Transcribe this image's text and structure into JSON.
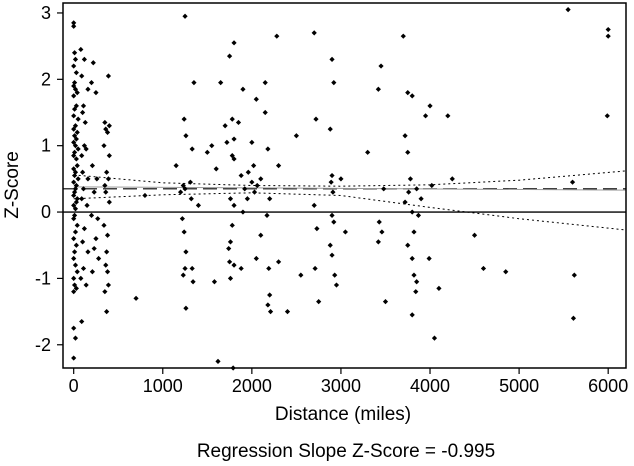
{
  "chart_data": {
    "type": "scatter",
    "xlabel": "Distance (miles)",
    "ylabel": "Z-Score",
    "caption": "Regression Slope Z-Score = -0.995",
    "xlim": [
      -120,
      6200
    ],
    "ylim": [
      -2.35,
      3.15
    ],
    "xticks": [
      0,
      1000,
      2000,
      3000,
      4000,
      5000,
      6000
    ],
    "yticks": [
      -2,
      -1,
      0,
      1,
      2,
      3
    ],
    "grid": false,
    "reference_line_y": 0,
    "mean_line_y": 0.35,
    "regression": {
      "x": [
        0,
        6200
      ],
      "y": [
        0.38,
        0.33
      ]
    },
    "confidence_upper": {
      "x": [
        0,
        1000,
        2000,
        3000,
        4000,
        5000,
        6200
      ],
      "y": [
        0.56,
        0.44,
        0.4,
        0.39,
        0.41,
        0.48,
        0.62
      ]
    },
    "confidence_lower": {
      "x": [
        0,
        1000,
        2000,
        3000,
        4000,
        5000,
        6200
      ],
      "y": [
        0.2,
        0.26,
        0.29,
        0.25,
        0.07,
        -0.1,
        -0.27
      ]
    },
    "series": [
      {
        "points": [
          [
            0,
            2.85
          ],
          [
            0,
            2.8
          ],
          [
            10,
            2.4
          ],
          [
            20,
            2.3
          ],
          [
            0,
            2.2
          ],
          [
            30,
            2.1
          ],
          [
            10,
            1.95
          ],
          [
            0,
            1.9
          ],
          [
            20,
            1.85
          ],
          [
            40,
            1.8
          ],
          [
            0,
            1.75
          ],
          [
            30,
            1.6
          ],
          [
            10,
            1.55
          ],
          [
            0,
            1.45
          ],
          [
            50,
            1.4
          ],
          [
            20,
            1.3
          ],
          [
            0,
            1.25
          ],
          [
            40,
            1.2
          ],
          [
            10,
            1.15
          ],
          [
            30,
            1.1
          ],
          [
            0,
            1.05
          ],
          [
            20,
            1.0
          ],
          [
            50,
            0.95
          ],
          [
            10,
            0.9
          ],
          [
            0,
            0.85
          ],
          [
            30,
            0.8
          ],
          [
            40,
            0.7
          ],
          [
            0,
            0.65
          ],
          [
            20,
            0.6
          ],
          [
            10,
            0.55
          ],
          [
            50,
            0.5
          ],
          [
            0,
            0.45
          ],
          [
            30,
            0.4
          ],
          [
            20,
            0.35
          ],
          [
            10,
            0.3
          ],
          [
            0,
            0.25
          ],
          [
            40,
            0.2
          ],
          [
            30,
            0.15
          ],
          [
            0,
            0.1
          ],
          [
            20,
            0.05
          ],
          [
            10,
            -0.05
          ],
          [
            0,
            -0.1
          ],
          [
            40,
            -0.2
          ],
          [
            20,
            -0.3
          ],
          [
            0,
            -0.4
          ],
          [
            30,
            -0.5
          ],
          [
            10,
            -0.6
          ],
          [
            0,
            -0.7
          ],
          [
            20,
            -0.8
          ],
          [
            40,
            -0.9
          ],
          [
            0,
            -1.0
          ],
          [
            10,
            -1.1
          ],
          [
            30,
            -1.15
          ],
          [
            0,
            -1.2
          ],
          [
            0,
            -1.75
          ],
          [
            20,
            -1.9
          ],
          [
            0,
            -2.2
          ],
          [
            80,
            2.45
          ],
          [
            120,
            2.3
          ],
          [
            90,
            2.05
          ],
          [
            160,
            1.85
          ],
          [
            110,
            1.6
          ],
          [
            100,
            1.5
          ],
          [
            130,
            1.35
          ],
          [
            120,
            1.0
          ],
          [
            140,
            0.95
          ],
          [
            90,
            0.85
          ],
          [
            100,
            0.6
          ],
          [
            160,
            0.5
          ],
          [
            110,
            0.35
          ],
          [
            90,
            0.2
          ],
          [
            150,
            0.1
          ],
          [
            120,
            -0.25
          ],
          [
            100,
            -0.45
          ],
          [
            160,
            -0.6
          ],
          [
            110,
            -0.85
          ],
          [
            80,
            -1.0
          ],
          [
            140,
            -1.1
          ],
          [
            90,
            -1.65
          ],
          [
            220,
            2.25
          ],
          [
            200,
            1.95
          ],
          [
            250,
            1.8
          ],
          [
            210,
            0.7
          ],
          [
            260,
            0.5
          ],
          [
            230,
            0.3
          ],
          [
            200,
            -0.05
          ],
          [
            270,
            -0.1
          ],
          [
            250,
            -0.4
          ],
          [
            230,
            -0.55
          ],
          [
            280,
            -0.7
          ],
          [
            210,
            -0.9
          ],
          [
            390,
            2.05
          ],
          [
            350,
            1.35
          ],
          [
            400,
            1.3
          ],
          [
            360,
            1.25
          ],
          [
            380,
            1.2
          ],
          [
            340,
            1.0
          ],
          [
            400,
            0.85
          ],
          [
            370,
            0.6
          ],
          [
            390,
            0.5
          ],
          [
            350,
            0.4
          ],
          [
            360,
            0.3
          ],
          [
            400,
            0.15
          ],
          [
            340,
            -0.2
          ],
          [
            380,
            -0.35
          ],
          [
            370,
            -0.6
          ],
          [
            360,
            -0.8
          ],
          [
            380,
            -0.9
          ],
          [
            390,
            -1.1
          ],
          [
            350,
            -1.2
          ],
          [
            370,
            -1.5
          ],
          [
            700,
            -1.3
          ],
          [
            800,
            0.25
          ],
          [
            1150,
            0.7
          ],
          [
            1200,
            0.3
          ],
          [
            1250,
            2.95
          ],
          [
            1240,
            1.4
          ],
          [
            1260,
            1.15
          ],
          [
            1230,
            0.4
          ],
          [
            1250,
            0.35
          ],
          [
            1220,
            -0.1
          ],
          [
            1240,
            -0.3
          ],
          [
            1260,
            -0.6
          ],
          [
            1250,
            -0.85
          ],
          [
            1230,
            -0.95
          ],
          [
            1260,
            -1.45
          ],
          [
            1350,
            1.95
          ],
          [
            1330,
            0.95
          ],
          [
            1310,
            0.45
          ],
          [
            1320,
            0.2
          ],
          [
            1330,
            -0.85
          ],
          [
            1340,
            -1.05
          ],
          [
            1400,
            0.1
          ],
          [
            1500,
            0.9
          ],
          [
            1550,
            1.0
          ],
          [
            1600,
            0.65
          ],
          [
            1580,
            -1.05
          ],
          [
            1620,
            -2.25
          ],
          [
            1650,
            1.95
          ],
          [
            1700,
            1.3
          ],
          [
            1750,
            2.35
          ],
          [
            1780,
            1.4
          ],
          [
            1720,
            1.05
          ],
          [
            1800,
            2.55
          ],
          [
            1800,
            1.1
          ],
          [
            1780,
            0.85
          ],
          [
            1800,
            0.8
          ],
          [
            1760,
            0.2
          ],
          [
            1800,
            0.1
          ],
          [
            1780,
            -0.2
          ],
          [
            1760,
            -0.45
          ],
          [
            1740,
            -0.55
          ],
          [
            1750,
            -0.75
          ],
          [
            1760,
            -1.0
          ],
          [
            1790,
            -2.35
          ],
          [
            1850,
            1.35
          ],
          [
            1800,
            -0.8
          ],
          [
            1900,
            1.85
          ],
          [
            1880,
            0.55
          ],
          [
            1920,
            0.35
          ],
          [
            1950,
            0.2
          ],
          [
            1900,
            0.0
          ],
          [
            1880,
            -0.85
          ],
          [
            1960,
            0.6
          ],
          [
            2000,
            1.05
          ],
          [
            2020,
            0.7
          ],
          [
            2050,
            1.7
          ],
          [
            2000,
            0.45
          ],
          [
            2030,
            0.3
          ],
          [
            2060,
            0.4
          ],
          [
            2050,
            -0.7
          ],
          [
            2100,
            0.5
          ],
          [
            2150,
            1.5
          ],
          [
            2150,
            1.95
          ],
          [
            2180,
            0.95
          ],
          [
            2170,
            -0.05
          ],
          [
            2190,
            -0.85
          ],
          [
            2200,
            -1.25
          ],
          [
            2180,
            -1.4
          ],
          [
            2210,
            -1.5
          ],
          [
            2100,
            -0.35
          ],
          [
            2200,
            0.2
          ],
          [
            2280,
            2.65
          ],
          [
            2300,
            0.7
          ],
          [
            2300,
            -0.75
          ],
          [
            2400,
            -1.5
          ],
          [
            2500,
            1.15
          ],
          [
            2550,
            -0.95
          ],
          [
            2700,
            2.7
          ],
          [
            2720,
            1.4
          ],
          [
            2700,
            0.1
          ],
          [
            2730,
            -0.25
          ],
          [
            2710,
            -0.85
          ],
          [
            2750,
            -1.35
          ],
          [
            2900,
            2.3
          ],
          [
            2920,
            1.95
          ],
          [
            2880,
            1.25
          ],
          [
            2900,
            0.55
          ],
          [
            2890,
            0.45
          ],
          [
            2910,
            0.3
          ],
          [
            2900,
            -0.05
          ],
          [
            2920,
            -0.15
          ],
          [
            2880,
            -0.5
          ],
          [
            2900,
            -0.65
          ],
          [
            2930,
            -0.95
          ],
          [
            2950,
            -1.1
          ],
          [
            3000,
            0.5
          ],
          [
            3050,
            -0.3
          ],
          [
            3300,
            0.9
          ],
          [
            3450,
            2.2
          ],
          [
            3420,
            1.85
          ],
          [
            3480,
            0.35
          ],
          [
            3430,
            -0.15
          ],
          [
            3460,
            -0.3
          ],
          [
            3420,
            -0.45
          ],
          [
            3500,
            -1.35
          ],
          [
            3700,
            2.65
          ],
          [
            3750,
            1.8
          ],
          [
            3800,
            1.75
          ],
          [
            3720,
            1.15
          ],
          [
            3750,
            0.9
          ],
          [
            3780,
            0.5
          ],
          [
            3760,
            0.3
          ],
          [
            3720,
            0.15
          ],
          [
            3800,
            0.0
          ],
          [
            3820,
            -0.3
          ],
          [
            3750,
            -0.5
          ],
          [
            3800,
            -0.7
          ],
          [
            3820,
            -0.95
          ],
          [
            3850,
            -1.05
          ],
          [
            3840,
            -1.2
          ],
          [
            3800,
            -1.55
          ],
          [
            3850,
            0.35
          ],
          [
            3870,
            -0.05
          ],
          [
            3900,
            0.2
          ],
          [
            4000,
            1.6
          ],
          [
            3950,
            1.45
          ],
          [
            4020,
            0.4
          ],
          [
            3990,
            -0.7
          ],
          [
            4050,
            -1.9
          ],
          [
            4100,
            -1.15
          ],
          [
            4200,
            1.45
          ],
          [
            4250,
            0.5
          ],
          [
            4500,
            -0.35
          ],
          [
            4600,
            -0.85
          ],
          [
            4850,
            -0.9
          ],
          [
            5550,
            3.05
          ],
          [
            5600,
            0.45
          ],
          [
            5620,
            -0.95
          ],
          [
            5610,
            -1.6
          ],
          [
            6000,
            2.75
          ],
          [
            6000,
            2.65
          ],
          [
            5990,
            1.45
          ]
        ]
      }
    ]
  }
}
